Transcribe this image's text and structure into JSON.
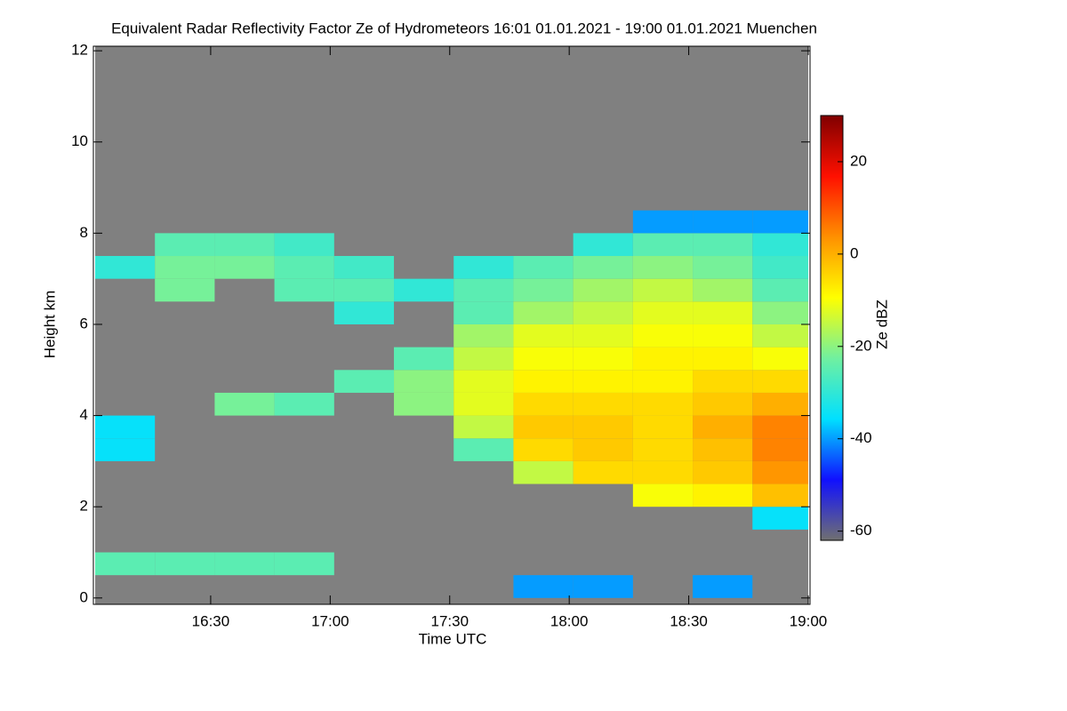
{
  "chart_data": {
    "type": "heatmap",
    "title": "Equivalent Radar Reflectivity Factor Ze of Hydrometeors   16:01 01.01.2021 - 19:00 01.01.2021 Muenchen",
    "x_label": "Time UTC",
    "y_label": "Height km",
    "colorbar_label": "Ze dBZ",
    "x": [
      961,
      976,
      991,
      1006,
      1021,
      1036,
      1051,
      1066,
      1081,
      1096,
      1111,
      1126
    ],
    "y": [
      0,
      0.5,
      1,
      1.5,
      2,
      2.5,
      3,
      3.5,
      4,
      4.5,
      5,
      5.5,
      6,
      6.5,
      7,
      7.5,
      8
    ],
    "z": [
      [
        null,
        null,
        null,
        null,
        null,
        null,
        null,
        -40,
        -40,
        null,
        -40,
        null
      ],
      [
        -25,
        -25,
        -25,
        -25,
        null,
        null,
        null,
        null,
        null,
        null,
        null,
        null
      ],
      [
        null,
        null,
        null,
        null,
        null,
        null,
        null,
        null,
        null,
        null,
        null,
        null
      ],
      [
        null,
        null,
        null,
        null,
        null,
        null,
        null,
        null,
        null,
        null,
        null,
        -35
      ],
      [
        null,
        null,
        null,
        null,
        null,
        null,
        null,
        null,
        null,
        -10,
        -8,
        -2
      ],
      [
        null,
        null,
        null,
        null,
        null,
        null,
        null,
        -15,
        -5,
        -5,
        -3,
        3
      ],
      [
        -35,
        null,
        null,
        null,
        null,
        null,
        -25,
        -5,
        -3,
        -5,
        -2,
        5
      ],
      [
        -35,
        null,
        null,
        null,
        null,
        null,
        -15,
        -3,
        -3,
        -5,
        0,
        5
      ],
      [
        null,
        null,
        -22,
        -25,
        null,
        -20,
        -12,
        -5,
        -5,
        -5,
        -3,
        0
      ],
      [
        null,
        null,
        null,
        null,
        -25,
        -20,
        -12,
        -8,
        -8,
        -8,
        -5,
        -5
      ],
      [
        null,
        null,
        null,
        null,
        null,
        -25,
        -15,
        -10,
        -10,
        -8,
        -8,
        -10
      ],
      [
        null,
        null,
        null,
        null,
        null,
        null,
        -18,
        -12,
        -12,
        -10,
        -10,
        -15
      ],
      [
        null,
        null,
        null,
        null,
        -30,
        null,
        -25,
        -18,
        -15,
        -12,
        -12,
        -20
      ],
      [
        null,
        -22,
        null,
        -25,
        -25,
        -30,
        -25,
        -22,
        -18,
        -15,
        -18,
        -25
      ],
      [
        -30,
        -22,
        -22,
        -25,
        -28,
        null,
        -30,
        -25,
        -22,
        -20,
        -22,
        -28
      ],
      [
        null,
        -25,
        -25,
        -28,
        null,
        null,
        null,
        null,
        -30,
        -25,
        -25,
        -30
      ],
      [
        null,
        null,
        null,
        null,
        null,
        null,
        null,
        null,
        null,
        -40,
        -40,
        -40
      ]
    ],
    "xlim": [
      961,
      1140
    ],
    "ylim": [
      -0.14,
      12.1
    ],
    "zlim": [
      -62,
      30
    ],
    "xticks": [
      {
        "value": 990,
        "label": "16:30"
      },
      {
        "value": 1020,
        "label": "17:00"
      },
      {
        "value": 1050,
        "label": "17:30"
      },
      {
        "value": 1080,
        "label": "18:00"
      },
      {
        "value": 1110,
        "label": "18:30"
      },
      {
        "value": 1140,
        "label": "19:00"
      }
    ],
    "yticks": [
      0,
      2,
      4,
      6,
      8,
      10,
      12
    ],
    "zticks": [
      -60,
      -40,
      -20,
      0,
      20
    ],
    "background": "#808080",
    "colormap": [
      "#707070",
      "#1010ff",
      "#00e0ff",
      "#70f0a0",
      "#ffff00",
      "#ff9000",
      "#ff1000",
      "#800000"
    ]
  }
}
